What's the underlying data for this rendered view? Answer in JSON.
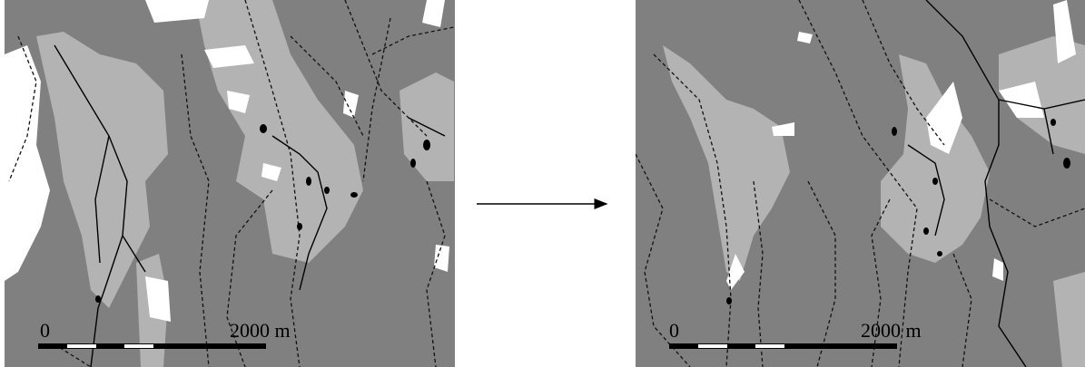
{
  "maps": [
    {
      "scale_start": "0",
      "scale_end": "2000 m"
    },
    {
      "scale_start": "0",
      "scale_end": "2000 m"
    }
  ]
}
